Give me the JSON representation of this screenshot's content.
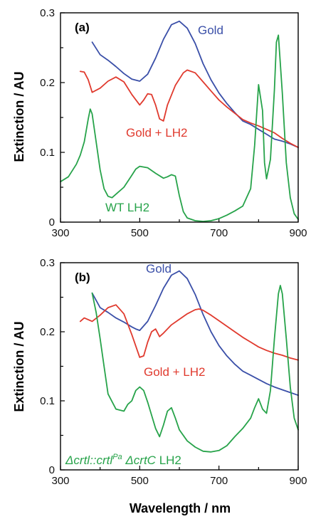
{
  "xlabel": "Wavelength / nm",
  "chart_data": [
    {
      "panel": "(a)",
      "type": "line",
      "ylabel": "Extinction / AU",
      "xlim": [
        300,
        900
      ],
      "ylim": [
        0,
        0.3
      ],
      "xticks": [
        "300",
        "500",
        "700",
        "900"
      ],
      "yticks": [
        "0",
        "0.1",
        "0.2",
        "0.3"
      ],
      "grid": false,
      "legend": "inline labels",
      "series": [
        {
          "name": "Gold",
          "color": "#3a4fa8",
          "x": [
            380,
            400,
            420,
            440,
            460,
            480,
            500,
            520,
            540,
            560,
            580,
            600,
            620,
            640,
            660,
            680,
            700,
            720,
            740,
            760,
            780,
            800,
            820,
            840,
            860,
            880,
            900
          ],
          "y": [
            0.258,
            0.24,
            0.232,
            0.223,
            0.213,
            0.205,
            0.202,
            0.212,
            0.235,
            0.262,
            0.283,
            0.288,
            0.278,
            0.256,
            0.227,
            0.204,
            0.185,
            0.17,
            0.157,
            0.145,
            0.14,
            0.133,
            0.126,
            0.119,
            0.116,
            0.112,
            0.107
          ]
        },
        {
          "name": "Gold + LH2",
          "color": "#e03a2e",
          "x": [
            350,
            360,
            370,
            380,
            400,
            420,
            440,
            460,
            480,
            500,
            510,
            520,
            530,
            540,
            550,
            560,
            570,
            590,
            610,
            620,
            640,
            660,
            680,
            700,
            720,
            740,
            760,
            780,
            800,
            820,
            840,
            860,
            880,
            900
          ],
          "y": [
            0.216,
            0.215,
            0.204,
            0.186,
            0.192,
            0.202,
            0.208,
            0.201,
            0.183,
            0.168,
            0.175,
            0.184,
            0.183,
            0.168,
            0.148,
            0.145,
            0.168,
            0.196,
            0.214,
            0.218,
            0.214,
            0.201,
            0.188,
            0.175,
            0.165,
            0.156,
            0.147,
            0.142,
            0.138,
            0.133,
            0.128,
            0.12,
            0.113,
            0.107
          ]
        },
        {
          "name": "WT LH2",
          "color": "#27a34a",
          "x": [
            300,
            320,
            340,
            350,
            360,
            370,
            375,
            380,
            390,
            400,
            410,
            420,
            430,
            440,
            460,
            480,
            490,
            500,
            520,
            540,
            560,
            570,
            580,
            590,
            600,
            610,
            620,
            640,
            660,
            680,
            700,
            720,
            740,
            760,
            780,
            790,
            800,
            810,
            815,
            820,
            830,
            840,
            845,
            850,
            860,
            870,
            880,
            890,
            900
          ],
          "y": [
            0.058,
            0.065,
            0.083,
            0.096,
            0.115,
            0.148,
            0.162,
            0.155,
            0.115,
            0.075,
            0.048,
            0.037,
            0.035,
            0.04,
            0.05,
            0.067,
            0.076,
            0.08,
            0.078,
            0.07,
            0.063,
            0.065,
            0.068,
            0.066,
            0.038,
            0.015,
            0.006,
            0.002,
            0.001,
            0.002,
            0.005,
            0.01,
            0.016,
            0.023,
            0.048,
            0.11,
            0.197,
            0.16,
            0.085,
            0.062,
            0.09,
            0.19,
            0.258,
            0.268,
            0.185,
            0.085,
            0.035,
            0.012,
            0.004
          ]
        }
      ]
    },
    {
      "panel": "(b)",
      "type": "line",
      "ylabel": "Extinction / AU",
      "xlim": [
        300,
        900
      ],
      "ylim": [
        0,
        0.3
      ],
      "xticks": [
        "300",
        "500",
        "700",
        "900"
      ],
      "yticks": [
        "0",
        "0.1",
        "0.2",
        "0.3"
      ],
      "grid": false,
      "legend": "inline labels",
      "series": [
        {
          "name": "Gold",
          "color": "#3a4fa8",
          "x": [
            380,
            400,
            420,
            440,
            460,
            480,
            490,
            500,
            520,
            540,
            560,
            580,
            600,
            620,
            640,
            660,
            680,
            700,
            720,
            740,
            760,
            780,
            800,
            820,
            840,
            860,
            880,
            900
          ],
          "y": [
            0.256,
            0.235,
            0.228,
            0.22,
            0.214,
            0.207,
            0.204,
            0.202,
            0.215,
            0.238,
            0.263,
            0.282,
            0.288,
            0.277,
            0.254,
            0.225,
            0.2,
            0.18,
            0.165,
            0.153,
            0.143,
            0.137,
            0.131,
            0.125,
            0.12,
            0.116,
            0.112,
            0.108
          ]
        },
        {
          "name": "Gold + LH2",
          "color": "#e03a2e",
          "x": [
            350,
            360,
            380,
            400,
            420,
            440,
            460,
            480,
            500,
            510,
            520,
            530,
            540,
            550,
            560,
            580,
            600,
            620,
            640,
            650,
            660,
            680,
            700,
            720,
            740,
            760,
            780,
            800,
            820,
            840,
            860,
            880,
            900
          ],
          "y": [
            0.215,
            0.22,
            0.215,
            0.224,
            0.235,
            0.239,
            0.226,
            0.196,
            0.163,
            0.165,
            0.185,
            0.2,
            0.204,
            0.193,
            0.198,
            0.21,
            0.218,
            0.226,
            0.232,
            0.233,
            0.231,
            0.224,
            0.216,
            0.208,
            0.2,
            0.192,
            0.185,
            0.178,
            0.173,
            0.169,
            0.166,
            0.162,
            0.159
          ]
        },
        {
          "name": "ΔcrtI::crtIPa ΔcrtC LH2",
          "color": "#27a34a",
          "x": [
            380,
            390,
            400,
            410,
            420,
            440,
            460,
            470,
            480,
            490,
            500,
            510,
            520,
            540,
            550,
            560,
            570,
            580,
            590,
            600,
            620,
            640,
            660,
            680,
            700,
            720,
            740,
            760,
            780,
            790,
            800,
            810,
            820,
            830,
            840,
            850,
            855,
            860,
            870,
            880,
            890,
            900
          ],
          "y": [
            0.256,
            0.228,
            0.19,
            0.15,
            0.11,
            0.088,
            0.085,
            0.095,
            0.1,
            0.115,
            0.12,
            0.115,
            0.098,
            0.06,
            0.048,
            0.065,
            0.085,
            0.09,
            0.075,
            0.058,
            0.042,
            0.033,
            0.027,
            0.026,
            0.028,
            0.035,
            0.048,
            0.06,
            0.075,
            0.09,
            0.103,
            0.088,
            0.082,
            0.115,
            0.19,
            0.255,
            0.267,
            0.255,
            0.19,
            0.12,
            0.075,
            0.058
          ]
        }
      ]
    }
  ],
  "labels": {
    "a": {
      "gold": "Gold",
      "gold_lh2": "Gold + LH2",
      "wt": "WT LH2"
    },
    "b": {
      "gold": "Gold",
      "gold_lh2": "Gold + LH2",
      "mutant_part1": "Δcrtl::crtl",
      "mutant_sup": "Pa",
      "mutant_part2": "ΔcrtC",
      "mutant_part3": "LH2"
    }
  }
}
